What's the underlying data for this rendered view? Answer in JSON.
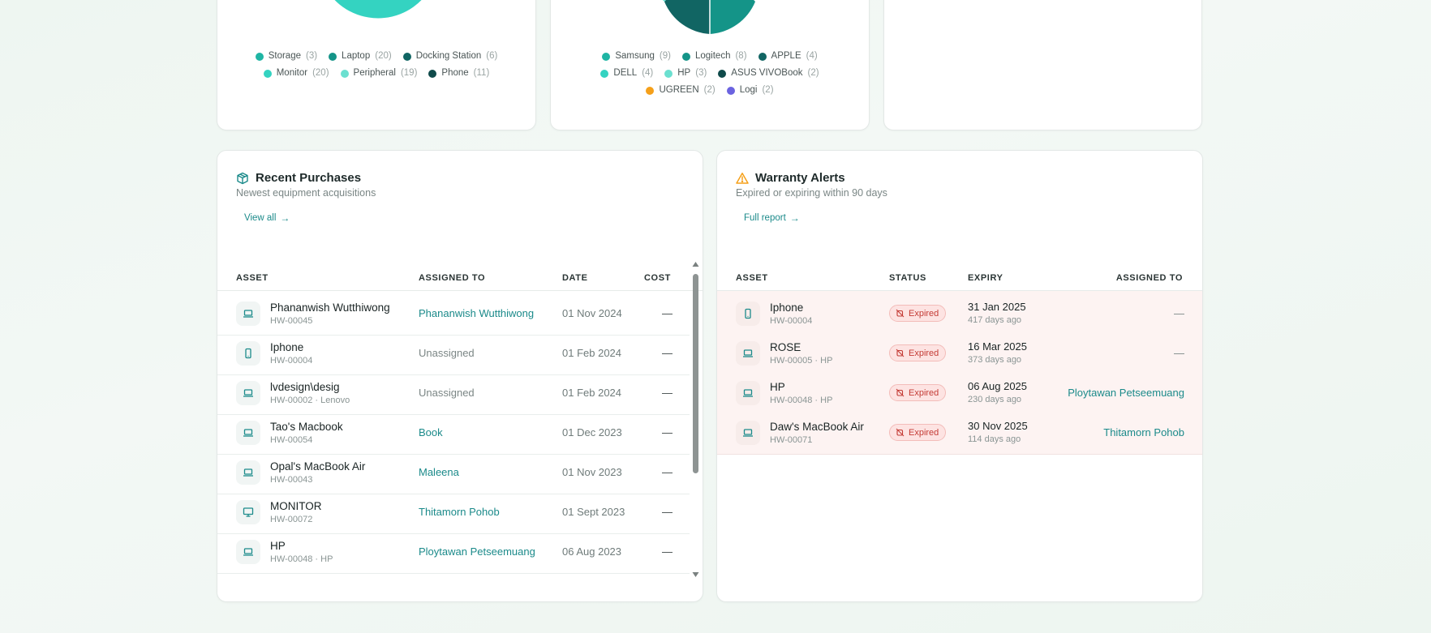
{
  "category_chart": {
    "legend": [
      {
        "label": "Storage",
        "count": "(3)",
        "color": "#1fb5a4"
      },
      {
        "label": "Laptop",
        "count": "(20)",
        "color": "#149488"
      },
      {
        "label": "Docking Station",
        "count": "(6)",
        "color": "#116563"
      },
      {
        "label": "Monitor",
        "count": "(20)",
        "color": "#34d3c1"
      },
      {
        "label": "Peripheral",
        "count": "(19)",
        "color": "#6be0d0"
      },
      {
        "label": "Phone",
        "count": "(11)",
        "color": "#0f4a4a"
      }
    ]
  },
  "brand_chart": {
    "legend": [
      {
        "label": "Samsung",
        "count": "(9)",
        "color": "#1fb5a4"
      },
      {
        "label": "Logitech",
        "count": "(8)",
        "color": "#149488"
      },
      {
        "label": "APPLE",
        "count": "(4)",
        "color": "#116563"
      },
      {
        "label": "DELL",
        "count": "(4)",
        "color": "#34d3c1"
      },
      {
        "label": "HP",
        "count": "(3)",
        "color": "#6be0d0"
      },
      {
        "label": "ASUS VIVOBook",
        "count": "(2)",
        "color": "#0f4a4a"
      },
      {
        "label": "UGREEN",
        "count": "(2)",
        "color": "#f5a01a"
      },
      {
        "label": "Logi",
        "count": "(2)",
        "color": "#6b63e0"
      }
    ]
  },
  "purchases": {
    "title": "Recent Purchases",
    "subtitle": "Newest equipment acquisitions",
    "link": "View all",
    "columns": {
      "asset": "ASSET",
      "assigned": "ASSIGNED TO",
      "date": "DATE",
      "cost": "COST"
    },
    "rows": [
      {
        "name": "Phananwish Wutthiwong",
        "id": "HW-00045",
        "icon": "laptop-icon",
        "assigned": "Phananwish Wutthiwong",
        "assigned_type": "link",
        "date": "01 Nov 2024",
        "cost": "—"
      },
      {
        "name": "Iphone",
        "id": "HW-00004",
        "icon": "phone-icon",
        "assigned": "Unassigned",
        "assigned_type": "none",
        "date": "01 Feb 2024",
        "cost": "—"
      },
      {
        "name": "lvdesign\\desig",
        "id": "HW-00002 · Lenovo",
        "icon": "laptop-icon",
        "assigned": "Unassigned",
        "assigned_type": "none",
        "date": "01 Feb 2024",
        "cost": "—"
      },
      {
        "name": "Tao's Macbook",
        "id": "HW-00054",
        "icon": "laptop-icon",
        "assigned": "Book",
        "assigned_type": "link",
        "date": "01 Dec 2023",
        "cost": "—"
      },
      {
        "name": "Opal's MacBook Air",
        "id": "HW-00043",
        "icon": "laptop-icon",
        "assigned": "Maleena",
        "assigned_type": "link",
        "date": "01 Nov 2023",
        "cost": "—"
      },
      {
        "name": "MONITOR",
        "id": "HW-00072",
        "icon": "monitor-icon",
        "assigned": "Thitamorn Pohob",
        "assigned_type": "link",
        "date": "01 Sept 2023",
        "cost": "—"
      },
      {
        "name": "HP",
        "id": "HW-00048 · HP",
        "icon": "laptop-icon",
        "assigned": "Ploytawan Petseemuang",
        "assigned_type": "link",
        "date": "06 Aug 2023",
        "cost": "—"
      }
    ]
  },
  "warranty": {
    "title": "Warranty Alerts",
    "subtitle": "Expired or expiring within 90 days",
    "link": "Full report",
    "columns": {
      "asset": "ASSET",
      "status": "STATUS",
      "expiry": "EXPIRY",
      "assigned": "ASSIGNED TO"
    },
    "rows": [
      {
        "name": "Iphone",
        "id": "HW-00004",
        "icon": "phone-icon",
        "status": "Expired",
        "expiry": "31 Jan 2025",
        "days": "417 days ago",
        "assigned": "—",
        "assigned_type": "none"
      },
      {
        "name": "ROSE",
        "id": "HW-00005 · HP",
        "icon": "laptop-icon",
        "status": "Expired",
        "expiry": "16 Mar 2025",
        "days": "373 days ago",
        "assigned": "—",
        "assigned_type": "none"
      },
      {
        "name": "HP",
        "id": "HW-00048 · HP",
        "icon": "laptop-icon",
        "status": "Expired",
        "expiry": "06 Aug 2025",
        "days": "230 days ago",
        "assigned": "Ploytawan Petseemuang",
        "assigned_type": "link"
      },
      {
        "name": "Daw's MacBook Air",
        "id": "HW-00071",
        "icon": "laptop-icon",
        "status": "Expired",
        "expiry": "30 Nov 2025",
        "days": "114 days ago",
        "assigned": "Thitamorn Pohob",
        "assigned_type": "link"
      }
    ]
  },
  "colors": {
    "accent": "#1b8a8a",
    "expired_bg": "#fde3e2",
    "expired_text": "#c43b35",
    "warning": "#f5a01a"
  }
}
